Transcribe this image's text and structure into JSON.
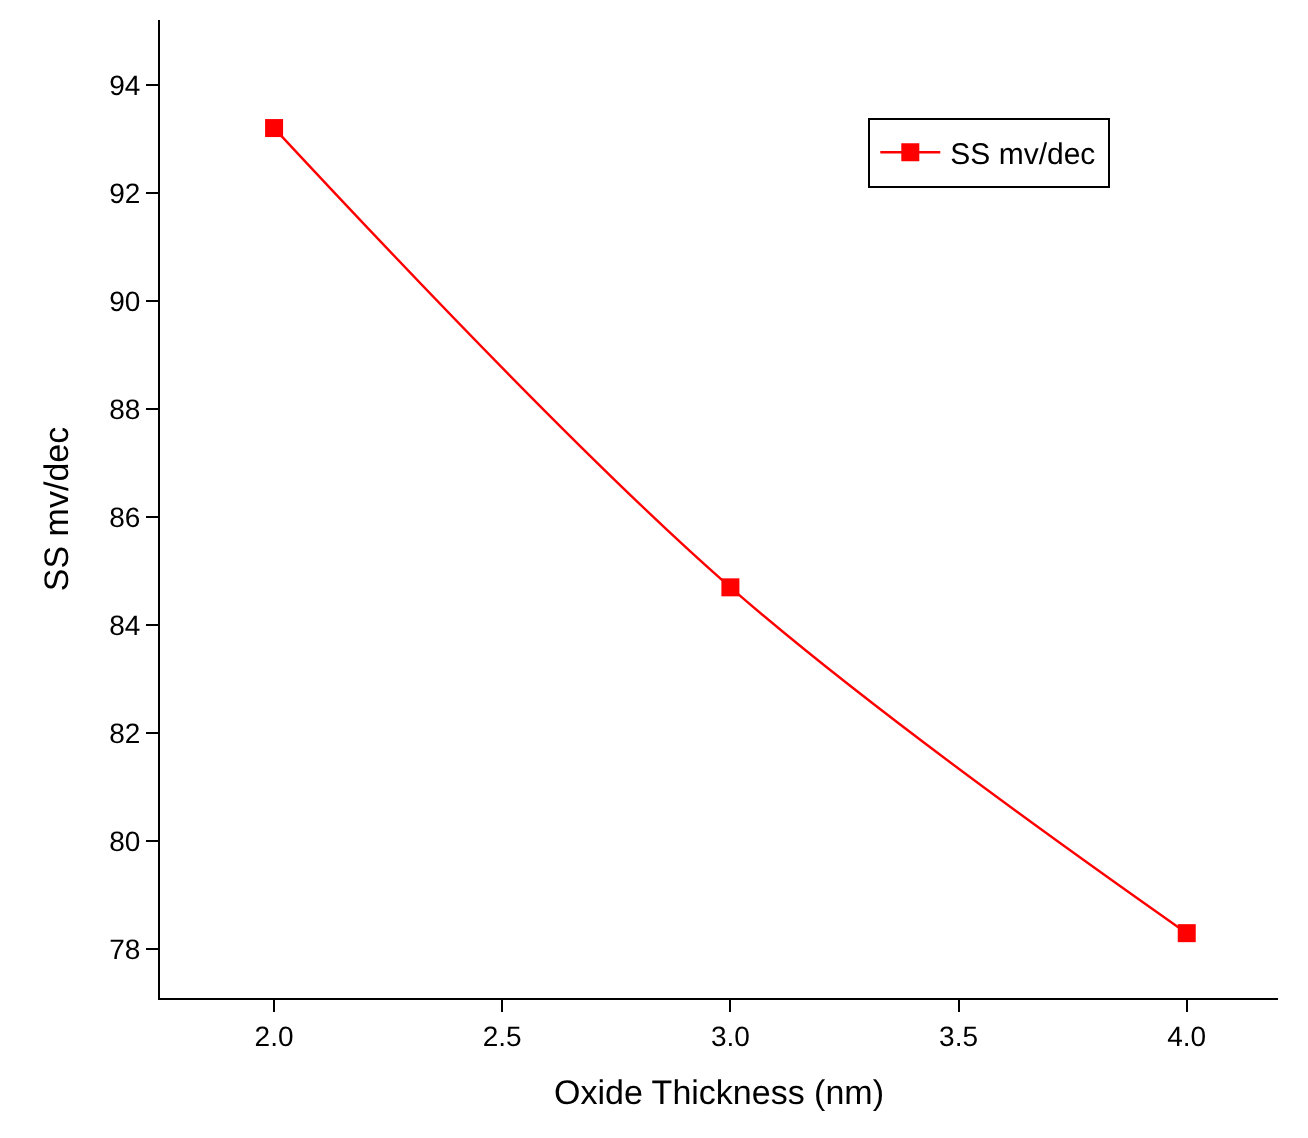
{
  "chart_data": {
    "type": "line",
    "xlabel": "Oxide Thickness (nm)",
    "ylabel": "SS mv/dec",
    "x": [
      2.0,
      3.0,
      4.0
    ],
    "series": [
      {
        "name": "SS mv/dec",
        "color": "#ff0000",
        "values": [
          93.2,
          84.7,
          78.3
        ]
      }
    ],
    "xlim": [
      1.75,
      4.2
    ],
    "xticks": [
      {
        "value": 2.0,
        "label": "2.0"
      },
      {
        "value": 2.5,
        "label": "2.5"
      },
      {
        "value": 3.0,
        "label": "3.0"
      },
      {
        "value": 3.5,
        "label": "3.5"
      },
      {
        "value": 4.0,
        "label": "4.0"
      }
    ],
    "ylim": [
      77.1,
      95.2
    ],
    "yticks": [
      78,
      80,
      82,
      84,
      86,
      88,
      90,
      92,
      94
    ],
    "marker": "square",
    "line_style": "solid",
    "legend": "top right",
    "grid": false
  }
}
